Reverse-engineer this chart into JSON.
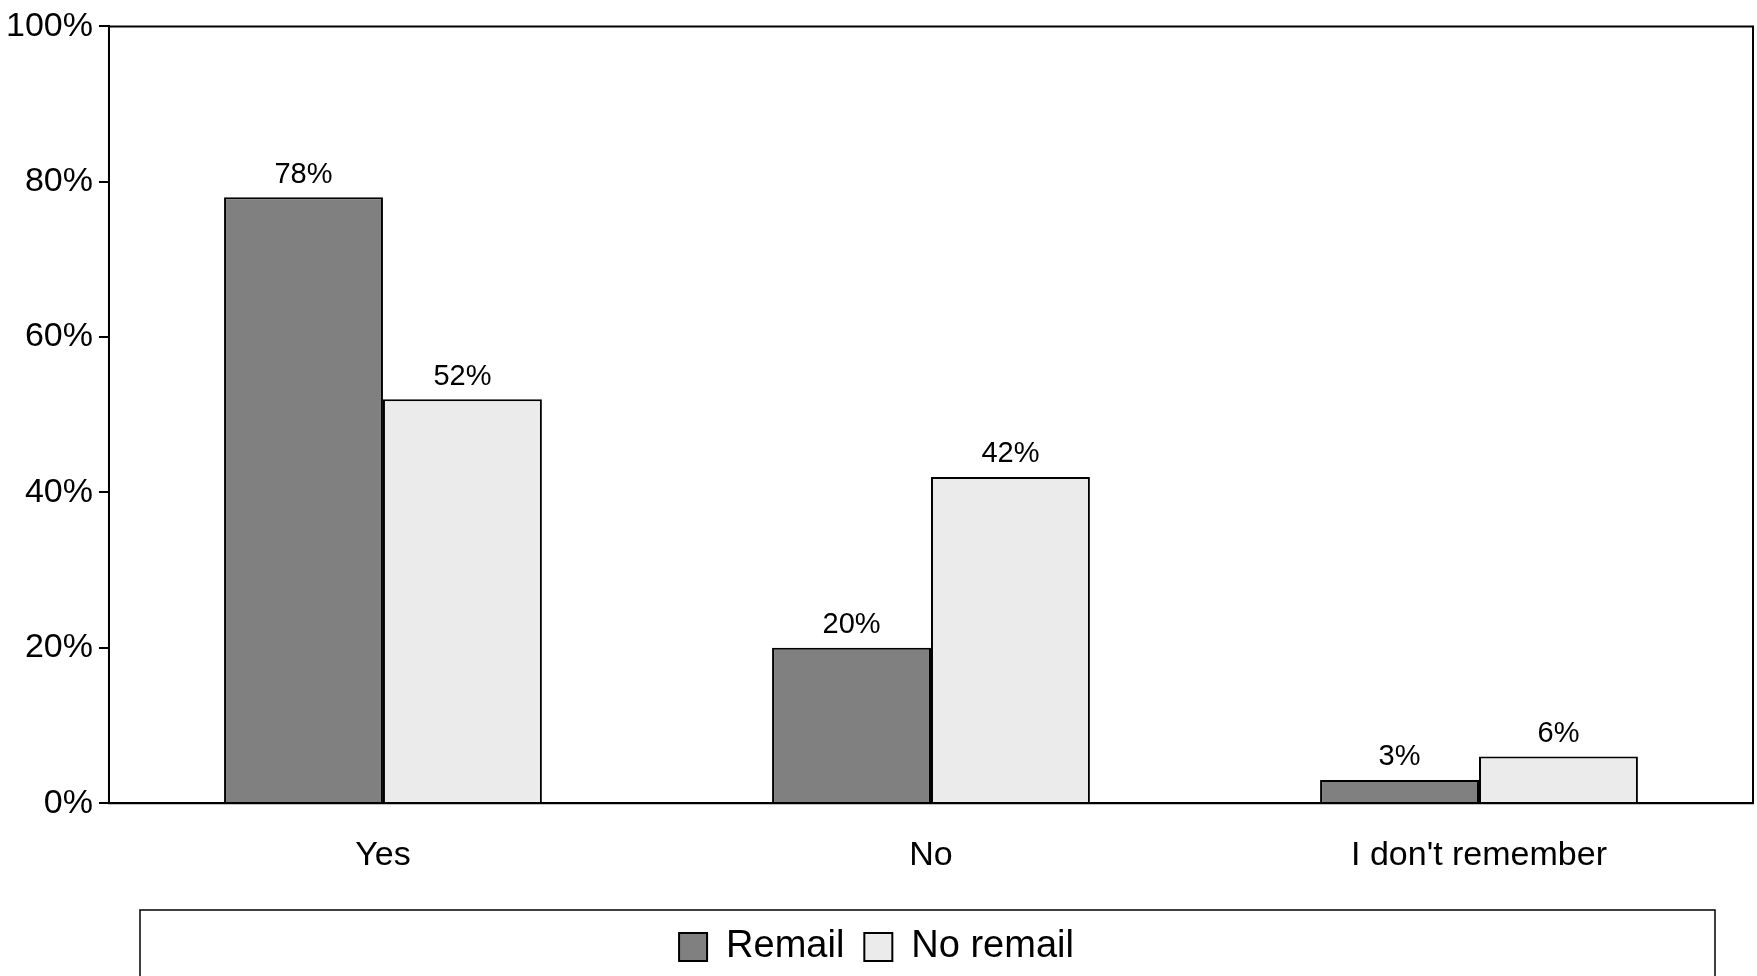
{
  "chart_data": {
    "type": "bar",
    "categories": [
      "Yes",
      "No",
      "I don't remember"
    ],
    "series": [
      {
        "name": "Remail",
        "color": "#808080",
        "values": [
          78,
          20,
          3
        ],
        "value_labels": [
          "78%",
          "20%",
          "3%"
        ]
      },
      {
        "name": "No remail",
        "color": "#ebebeb",
        "values": [
          52,
          42,
          6
        ],
        "value_labels": [
          "52%",
          "42%",
          "6%"
        ]
      }
    ],
    "ylim": [
      0,
      100
    ],
    "yticks": [
      {
        "value": 0,
        "label": "0%"
      },
      {
        "value": 20,
        "label": "20%"
      },
      {
        "value": 40,
        "label": "40%"
      },
      {
        "value": 60,
        "label": "60%"
      },
      {
        "value": 80,
        "label": "80%"
      },
      {
        "value": 100,
        "label": "100%"
      }
    ],
    "grid": false,
    "legend": "bottom"
  }
}
